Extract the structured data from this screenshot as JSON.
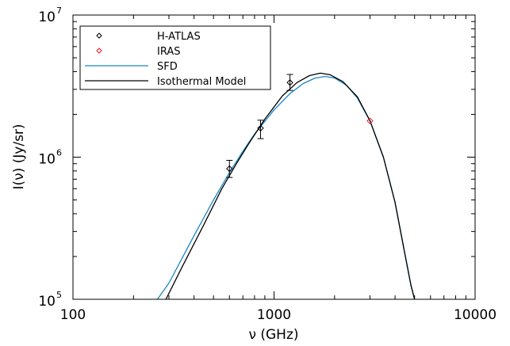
{
  "chart_data": {
    "type": "line",
    "xscale": "log",
    "yscale": "log",
    "xlim": [
      100,
      10000
    ],
    "ylim": [
      100000,
      10000000
    ],
    "xlabel": "ν (GHz)",
    "ylabel": "I(ν) (Jy/sr)",
    "x_ticks": [
      {
        "value": 100,
        "label": "100"
      },
      {
        "value": 1000,
        "label": "1000"
      },
      {
        "value": 10000,
        "label": "10000"
      }
    ],
    "y_ticks": [
      {
        "value": 100000,
        "base": "10",
        "exp": "5"
      },
      {
        "value": 1000000,
        "base": "10",
        "exp": "6"
      },
      {
        "value": 10000000,
        "base": "10",
        "exp": "7"
      }
    ],
    "legend_position": "top-left",
    "legend": [
      {
        "label": "H-ATLAS",
        "kind": "marker",
        "color": "#000000"
      },
      {
        "label": "IRAS",
        "kind": "marker",
        "color": "#e8141b"
      },
      {
        "label": "SFD",
        "kind": "line",
        "color": "#1a86c2"
      },
      {
        "label": "Isothermal Model",
        "kind": "line",
        "color": "#000000"
      }
    ],
    "series": [
      {
        "name": "H-ATLAS",
        "kind": "points",
        "color": "#000000",
        "points": [
          {
            "x": 600,
            "y": 830000,
            "err_low": 720000,
            "err_high": 950000
          },
          {
            "x": 857,
            "y": 1600000,
            "err_low": 1350000,
            "err_high": 1820000
          },
          {
            "x": 1200,
            "y": 3350000,
            "err_low": 2950000,
            "err_high": 3820000
          }
        ]
      },
      {
        "name": "IRAS",
        "kind": "points",
        "color": "#e8141b",
        "points": [
          {
            "x": 3000,
            "y": 1800000
          }
        ]
      },
      {
        "name": "SFD",
        "kind": "curve",
        "color": "#1a86c2",
        "points": [
          {
            "x": 263,
            "y": 100000
          },
          {
            "x": 300,
            "y": 130000
          },
          {
            "x": 400,
            "y": 280000
          },
          {
            "x": 500,
            "y": 500000
          },
          {
            "x": 600,
            "y": 780000
          },
          {
            "x": 700,
            "y": 1100000
          },
          {
            "x": 800,
            "y": 1450000
          },
          {
            "x": 1000,
            "y": 2150000
          },
          {
            "x": 1200,
            "y": 2800000
          },
          {
            "x": 1400,
            "y": 3300000
          },
          {
            "x": 1600,
            "y": 3600000
          },
          {
            "x": 1800,
            "y": 3700000
          },
          {
            "x": 2000,
            "y": 3600000
          },
          {
            "x": 2300,
            "y": 3200000
          },
          {
            "x": 2600,
            "y": 2600000
          },
          {
            "x": 3000,
            "y": 1800000
          },
          {
            "x": 3500,
            "y": 1000000
          },
          {
            "x": 4000,
            "y": 480000
          },
          {
            "x": 4500,
            "y": 200000
          },
          {
            "x": 4800,
            "y": 125000
          },
          {
            "x": 5000,
            "y": 100000
          }
        ]
      },
      {
        "name": "Isothermal Model",
        "kind": "curve",
        "color": "#000000",
        "points": [
          {
            "x": 290,
            "y": 100000
          },
          {
            "x": 350,
            "y": 170000
          },
          {
            "x": 450,
            "y": 340000
          },
          {
            "x": 550,
            "y": 600000
          },
          {
            "x": 650,
            "y": 900000
          },
          {
            "x": 750,
            "y": 1250000
          },
          {
            "x": 900,
            "y": 1850000
          },
          {
            "x": 1100,
            "y": 2700000
          },
          {
            "x": 1300,
            "y": 3350000
          },
          {
            "x": 1500,
            "y": 3750000
          },
          {
            "x": 1700,
            "y": 3900000
          },
          {
            "x": 1900,
            "y": 3800000
          },
          {
            "x": 2200,
            "y": 3400000
          },
          {
            "x": 2600,
            "y": 2650000
          },
          {
            "x": 3000,
            "y": 1800000
          },
          {
            "x": 3500,
            "y": 1000000
          },
          {
            "x": 4000,
            "y": 480000
          },
          {
            "x": 4500,
            "y": 200000
          },
          {
            "x": 4800,
            "y": 125000
          },
          {
            "x": 5000,
            "y": 100000
          }
        ]
      }
    ]
  }
}
